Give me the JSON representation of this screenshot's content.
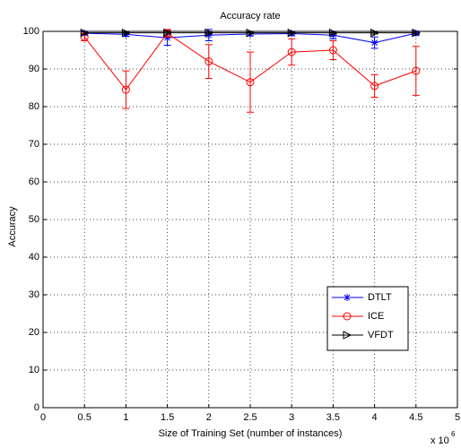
{
  "chart_data": {
    "type": "line",
    "title": "Accuracy rate",
    "x_label": "Size of Training Set (number of instances)",
    "y_label": "Accuracy",
    "x_multiplier": "x 10",
    "x_exponent": "6",
    "x": [
      0.5,
      1,
      1.5,
      2,
      2.5,
      3,
      3.5,
      4,
      4.5
    ],
    "series": [
      {
        "name": "DTLT",
        "color": "#0000ff",
        "marker": "asterisk",
        "values": [
          99.5,
          99.2,
          98.3,
          99.0,
          99.3,
          99.4,
          99.0,
          97.0,
          99.5
        ],
        "errors": [
          0.5,
          0.5,
          2,
          1.5,
          0.5,
          0.5,
          1,
          1.5,
          0.5
        ]
      },
      {
        "name": "ICE",
        "color": "#ff0000",
        "marker": "circle",
        "values": [
          98.5,
          84.5,
          99.5,
          92,
          86.5,
          94.5,
          95,
          85.5,
          89.5
        ],
        "errors": [
          1,
          5,
          1,
          4.5,
          8,
          3.5,
          2.5,
          3,
          6.5
        ]
      },
      {
        "name": "VFDT",
        "color": "#000000",
        "marker": "triangle-right",
        "values": [
          99.6,
          99.6,
          99.6,
          99.6,
          99.6,
          99.6,
          99.6,
          99.6,
          99.6
        ],
        "errors": [
          0.3,
          0.3,
          0.3,
          0.3,
          0.3,
          0.3,
          0.3,
          0.3,
          0.3
        ]
      }
    ],
    "xlim": [
      0,
      5
    ],
    "xticks": [
      0,
      0.5,
      1,
      1.5,
      2,
      2.5,
      3,
      3.5,
      4,
      4.5,
      5
    ],
    "ylim": [
      0,
      100
    ],
    "yticks": [
      0,
      10,
      20,
      30,
      40,
      50,
      60,
      70,
      80,
      90,
      100
    ],
    "grid": true,
    "legend": "lower right"
  }
}
